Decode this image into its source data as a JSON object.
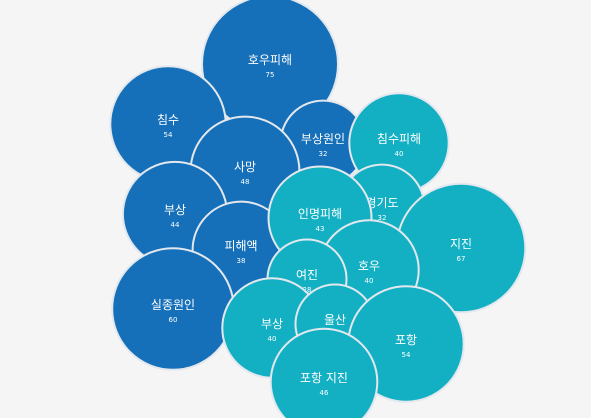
{
  "chart_data": {
    "type": "bubble",
    "title": "",
    "groups": [
      {
        "name": "",
        "color": "#1570b9"
      },
      {
        "name": "",
        "color": "#13b0c4"
      }
    ],
    "bubbles": [
      {
        "label": "호우피해",
        "value": 75,
        "group": 0
      },
      {
        "label": "침수",
        "value": 54,
        "group": 0
      },
      {
        "label": "부상원인",
        "value": 32,
        "group": 0
      },
      {
        "label": "사망",
        "value": 48,
        "group": 0
      },
      {
        "label": "부상",
        "value": 44,
        "group": 0
      },
      {
        "label": "피해액",
        "value": 38,
        "group": 0
      },
      {
        "label": "실종원인",
        "value": 60,
        "group": 0
      },
      {
        "label": "침수피해",
        "value": 40,
        "group": 1
      },
      {
        "label": "경기도",
        "value": 32,
        "group": 1
      },
      {
        "label": "인명피해",
        "value": 43,
        "group": 1
      },
      {
        "label": "지진",
        "value": 67,
        "group": 1
      },
      {
        "label": "호우",
        "value": 40,
        "group": 1
      },
      {
        "label": "여진",
        "value": 28,
        "group": 1
      },
      {
        "label": "부상",
        "value": 40,
        "group": 1
      },
      {
        "label": "울산",
        "value": 28,
        "group": 1
      },
      {
        "label": "포항",
        "value": 54,
        "group": 1
      },
      {
        "label": "포항 지진",
        "value": 46,
        "group": 1
      }
    ]
  }
}
